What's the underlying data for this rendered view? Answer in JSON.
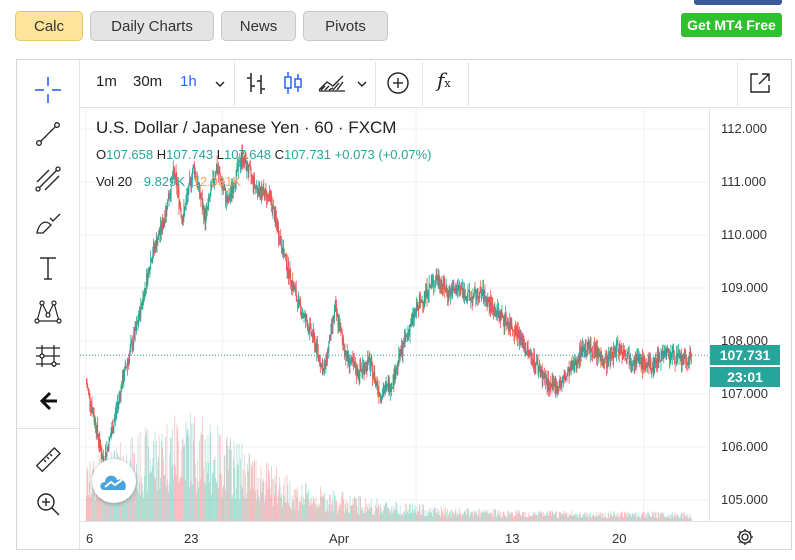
{
  "nav": {
    "calc": "Calc",
    "daily_charts": "Daily Charts",
    "news": "News",
    "pivots": "Pivots",
    "mt4": "Get MT4 Free"
  },
  "toolbar": {
    "interval_1m": "1m",
    "interval_30m": "30m",
    "interval_1h": "1h",
    "function_symbol": "f",
    "function_sub": "x"
  },
  "legend": {
    "title": "U.S. Dollar / Japanese Yen · 60 · FXCM",
    "open_label": "O",
    "open": "107.658",
    "high_label": "H",
    "high": "107.743",
    "low_label": "L",
    "low": "107.648",
    "close_label": "C",
    "close": "107.731",
    "change": "+0.073 (+0.07%)",
    "vol_label": "Vol 20",
    "vol_value": "9.829K",
    "vol_ma": "12.031K"
  },
  "price_axis": {
    "ticks": [
      "112.000",
      "111.000",
      "110.000",
      "109.000",
      "108.000",
      "107.000",
      "106.000",
      "105.000"
    ],
    "current_price": "107.731",
    "countdown": "23:01"
  },
  "time_axis": {
    "ticks": [
      "6",
      "23",
      "Apr",
      "13",
      "20"
    ]
  },
  "colors": {
    "up": "#26a69a",
    "down": "#ef5350",
    "accent": "#2962ff",
    "cta": "#2fbf2f",
    "active_tab": "#fce59b"
  },
  "chart_data": {
    "type": "candlestick",
    "title": "U.S. Dollar / Japanese Yen · 60 · FXCM",
    "ylim": [
      104.6,
      112.4
    ],
    "x_ticks": [
      "6",
      "23",
      "Apr",
      "13",
      "20"
    ],
    "y_ticks": [
      112,
      111,
      110,
      109,
      108,
      107,
      106,
      105
    ],
    "path_points": [
      [
        0,
        107.2
      ],
      [
        3,
        106.5
      ],
      [
        6,
        105.7
      ],
      [
        9,
        106.3
      ],
      [
        13,
        107.3
      ],
      [
        18,
        108.3
      ],
      [
        23,
        109.6
      ],
      [
        27,
        110.2
      ],
      [
        31,
        111.2
      ],
      [
        34,
        110.3
      ],
      [
        38,
        111.3
      ],
      [
        42,
        110.3
      ],
      [
        46,
        111.3
      ],
      [
        50,
        110.6
      ],
      [
        55,
        111.5
      ],
      [
        60,
        110.9
      ],
      [
        65,
        110.7
      ],
      [
        70,
        109.6
      ],
      [
        75,
        108.7
      ],
      [
        80,
        108.1
      ],
      [
        84,
        107.4
      ],
      [
        88,
        108.6
      ],
      [
        92,
        107.7
      ],
      [
        96,
        107.4
      ],
      [
        100,
        107.6
      ],
      [
        104,
        107.0
      ],
      [
        108,
        107.2
      ],
      [
        112,
        107.9
      ],
      [
        116,
        108.5
      ],
      [
        120,
        108.9
      ],
      [
        124,
        109.2
      ],
      [
        128,
        108.9
      ],
      [
        132,
        109.0
      ],
      [
        136,
        108.8
      ],
      [
        140,
        108.9
      ],
      [
        144,
        108.6
      ],
      [
        148,
        108.4
      ],
      [
        152,
        108.2
      ],
      [
        156,
        107.8
      ],
      [
        160,
        107.5
      ],
      [
        164,
        107.1
      ],
      [
        168,
        107.2
      ],
      [
        172,
        107.5
      ],
      [
        176,
        107.9
      ],
      [
        180,
        107.8
      ],
      [
        184,
        107.6
      ],
      [
        188,
        107.9
      ],
      [
        192,
        107.7
      ],
      [
        196,
        107.6
      ],
      [
        200,
        107.5
      ],
      [
        204,
        107.8
      ],
      [
        208,
        107.7
      ],
      [
        212,
        107.6
      ],
      [
        214,
        107.73
      ]
    ],
    "volume_profile": [
      [
        0,
        0.45
      ],
      [
        20,
        0.7
      ],
      [
        35,
        0.9
      ],
      [
        55,
        0.6
      ],
      [
        75,
        0.3
      ],
      [
        100,
        0.18
      ],
      [
        130,
        0.1
      ],
      [
        170,
        0.08
      ],
      [
        214,
        0.07
      ]
    ],
    "last_price": 107.731
  }
}
